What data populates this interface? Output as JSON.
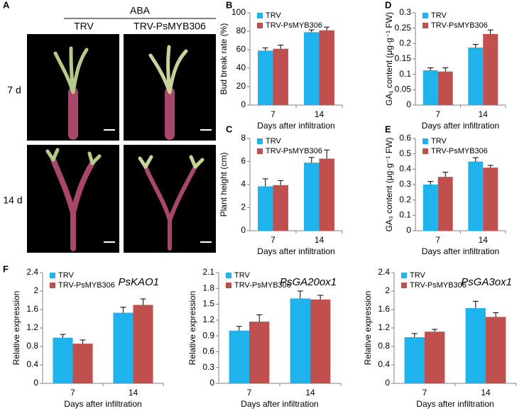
{
  "panel_labels": [
    "A",
    "B",
    "C",
    "D",
    "E",
    "F"
  ],
  "panel_a": {
    "treatment": "ABA",
    "columns": [
      "TRV",
      "TRV-PsMYB306"
    ],
    "rows": [
      "7 d",
      "14 d"
    ]
  },
  "chart_data": [
    {
      "type": "bar",
      "x_label": "Days after infiltration",
      "y_label": "Bud break rate (%)",
      "categories": [
        "7",
        "14"
      ],
      "series": [
        {
          "name": "TRV",
          "color": "#1fb3ee",
          "values": [
            59,
            79
          ],
          "errors": [
            3,
            2.5
          ]
        },
        {
          "name": "TRV-PsMYB306",
          "color": "#c0504d",
          "values": [
            61,
            81
          ],
          "errors": [
            4,
            3.5
          ]
        }
      ],
      "ylim": [
        0,
        100
      ],
      "yticks": [
        0,
        20,
        40,
        60,
        80,
        100
      ]
    },
    {
      "type": "bar",
      "x_label": "Days after infiltration",
      "y_label": "Plant height (cm)",
      "categories": [
        "7",
        "14"
      ],
      "series": [
        {
          "name": "TRV",
          "color": "#1fb3ee",
          "values": [
            3.85,
            5.9
          ],
          "errors": [
            0.65,
            0.45
          ]
        },
        {
          "name": "TRV-PsMYB306",
          "color": "#c0504d",
          "values": [
            3.95,
            6.25
          ],
          "errors": [
            0.4,
            0.75
          ]
        }
      ],
      "ylim": [
        0,
        8
      ],
      "yticks": [
        0,
        2,
        4,
        6,
        8
      ]
    },
    {
      "type": "bar",
      "x_label": "Days after infiltration",
      "y_label": "GA₁ content (μg·g⁻¹ FW)",
      "categories": [
        "7",
        "14"
      ],
      "series": [
        {
          "name": "TRV",
          "color": "#1fb3ee",
          "values": [
            0.113,
            0.187
          ],
          "errors": [
            0.008,
            0.01
          ]
        },
        {
          "name": "TRV-PsMYB306",
          "color": "#c0504d",
          "values": [
            0.109,
            0.231
          ],
          "errors": [
            0.012,
            0.013
          ]
        }
      ],
      "ylim": [
        0,
        0.3
      ],
      "yticks": [
        0,
        0.05,
        0.1,
        0.15,
        0.2,
        0.25,
        0.3
      ]
    },
    {
      "type": "bar",
      "x_label": "Days after infiltration",
      "y_label": "GA₃ content (μg·g⁻¹ FW)",
      "categories": [
        "7",
        "14"
      ],
      "series": [
        {
          "name": "TRV",
          "color": "#1fb3ee",
          "values": [
            0.3,
            0.45
          ],
          "errors": [
            0.02,
            0.025
          ]
        },
        {
          "name": "TRV-PsMYB306",
          "color": "#c0504d",
          "values": [
            0.35,
            0.41
          ],
          "errors": [
            0.03,
            0.015
          ]
        }
      ],
      "ylim": [
        0,
        0.6
      ],
      "yticks": [
        0,
        0.1,
        0.2,
        0.3,
        0.4,
        0.5,
        0.6
      ]
    },
    {
      "type": "bar",
      "title": "PsKAO1",
      "x_label": "Days after infiltration",
      "y_label": "Relative expression",
      "categories": [
        "7",
        "14"
      ],
      "series": [
        {
          "name": "TRV",
          "color": "#1fb3ee",
          "values": [
            0.99,
            1.53
          ],
          "errors": [
            0.07,
            0.12
          ]
        },
        {
          "name": "TRV-PsMYB306",
          "color": "#c0504d",
          "values": [
            0.86,
            1.7
          ],
          "errors": [
            0.08,
            0.13
          ]
        }
      ],
      "ylim": [
        0,
        2.4
      ],
      "yticks": [
        0,
        0.4,
        0.8,
        1.2,
        1.6,
        2,
        2.4
      ]
    },
    {
      "type": "bar",
      "title": "PsGA20ox1",
      "x_label": "Days after infiltration",
      "y_label": "Relative expression",
      "categories": [
        "7",
        "14"
      ],
      "series": [
        {
          "name": "TRV",
          "color": "#1fb3ee",
          "values": [
            1.0,
            1.61
          ],
          "errors": [
            0.08,
            0.14
          ]
        },
        {
          "name": "TRV-PsMYB306",
          "color": "#c0504d",
          "values": [
            1.17,
            1.59
          ],
          "errors": [
            0.13,
            0.08
          ]
        }
      ],
      "ylim": [
        0,
        2.1
      ],
      "yticks": [
        0,
        0.3,
        0.6,
        0.9,
        1.2,
        1.5,
        1.8,
        2.1
      ]
    },
    {
      "type": "bar",
      "title": "PsGA3ox1",
      "x_label": "Days after infiltration",
      "y_label": "Relative expression",
      "categories": [
        "7",
        "14"
      ],
      "series": [
        {
          "name": "TRV",
          "color": "#1fb3ee",
          "values": [
            1.0,
            1.63
          ],
          "errors": [
            0.08,
            0.15
          ]
        },
        {
          "name": "TRV-PsMYB306",
          "color": "#c0504d",
          "values": [
            1.12,
            1.44
          ],
          "errors": [
            0.05,
            0.09
          ]
        }
      ],
      "ylim": [
        0,
        2.4
      ],
      "yticks": [
        0,
        0.4,
        0.8,
        1.2,
        1.6,
        2,
        2.4
      ]
    }
  ]
}
